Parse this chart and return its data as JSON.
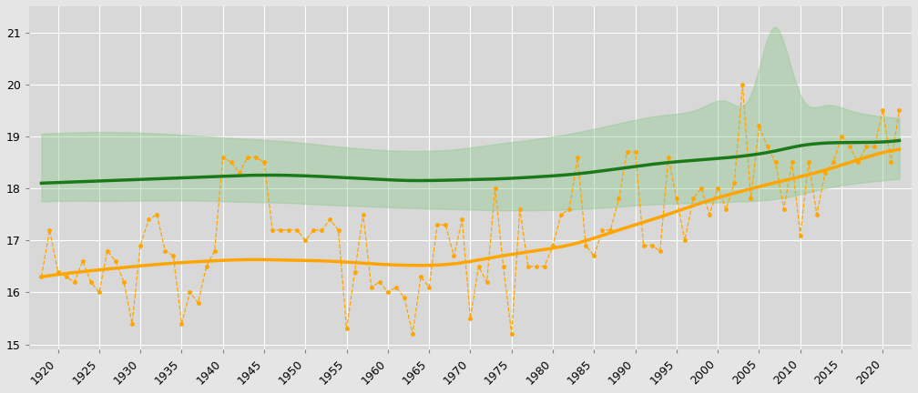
{
  "years": [
    1918,
    1919,
    1920,
    1921,
    1922,
    1923,
    1924,
    1925,
    1926,
    1927,
    1928,
    1929,
    1930,
    1931,
    1932,
    1933,
    1934,
    1935,
    1936,
    1937,
    1938,
    1939,
    1940,
    1941,
    1942,
    1943,
    1944,
    1945,
    1946,
    1947,
    1948,
    1949,
    1950,
    1951,
    1952,
    1953,
    1954,
    1955,
    1956,
    1957,
    1958,
    1959,
    1960,
    1961,
    1962,
    1963,
    1964,
    1965,
    1966,
    1967,
    1968,
    1969,
    1970,
    1971,
    1972,
    1973,
    1974,
    1975,
    1976,
    1977,
    1978,
    1979,
    1980,
    1981,
    1982,
    1983,
    1984,
    1985,
    1986,
    1987,
    1988,
    1989,
    1990,
    1991,
    1992,
    1993,
    1994,
    1995,
    1996,
    1997,
    1998,
    1999,
    2000,
    2001,
    2002,
    2003,
    2004,
    2005,
    2006,
    2007,
    2008,
    2009,
    2010,
    2011,
    2012,
    2013,
    2014,
    2015,
    2016,
    2017,
    2018,
    2019,
    2020,
    2021,
    2022
  ],
  "temp_raw": [
    16.3,
    17.2,
    16.4,
    16.3,
    16.2,
    16.6,
    16.2,
    16.0,
    16.8,
    16.6,
    16.2,
    15.4,
    16.9,
    17.4,
    17.5,
    16.8,
    16.7,
    15.4,
    16.0,
    15.8,
    16.5,
    16.8,
    18.6,
    18.5,
    18.3,
    18.6,
    18.6,
    18.5,
    17.2,
    17.2,
    17.2,
    17.2,
    17.0,
    17.2,
    17.2,
    17.4,
    17.2,
    15.3,
    16.4,
    17.5,
    16.1,
    16.2,
    16.0,
    16.1,
    15.9,
    15.2,
    16.3,
    16.1,
    17.3,
    17.3,
    16.7,
    17.4,
    15.5,
    16.5,
    16.2,
    18.0,
    16.5,
    15.2,
    17.6,
    16.5,
    16.5,
    16.5,
    16.9,
    17.5,
    17.6,
    18.6,
    16.9,
    16.7,
    17.2,
    17.2,
    17.8,
    18.7,
    18.7,
    16.9,
    16.9,
    16.8,
    18.6,
    17.8,
    17.0,
    17.8,
    18.0,
    17.5,
    18.0,
    17.6,
    18.1,
    20.0,
    17.8,
    19.2,
    18.8,
    18.5,
    17.6,
    18.5,
    17.1,
    18.5,
    17.5,
    18.3,
    18.5,
    19.0,
    18.8,
    18.5,
    18.8,
    18.8,
    19.5,
    18.5,
    19.5
  ],
  "temp_smooth_x": [
    1918,
    1923,
    1928,
    1933,
    1938,
    1943,
    1948,
    1953,
    1958,
    1963,
    1968,
    1973,
    1978,
    1983,
    1988,
    1993,
    1998,
    2003,
    2008,
    2013,
    2018,
    2022
  ],
  "temp_smooth_y": [
    16.3,
    16.4,
    16.48,
    16.55,
    16.6,
    16.63,
    16.62,
    16.6,
    16.55,
    16.52,
    16.55,
    16.68,
    16.8,
    16.95,
    17.2,
    17.45,
    17.72,
    17.95,
    18.15,
    18.35,
    18.6,
    18.75
  ],
  "opt_temp_x": [
    1918,
    1923,
    1928,
    1933,
    1938,
    1943,
    1948,
    1953,
    1958,
    1963,
    1968,
    1973,
    1978,
    1983,
    1988,
    1993,
    1998,
    2003,
    2007,
    2010,
    2015,
    2022
  ],
  "opt_temp_y": [
    18.1,
    18.13,
    18.16,
    18.19,
    18.22,
    18.25,
    18.25,
    18.22,
    18.18,
    18.15,
    18.16,
    18.18,
    18.22,
    18.28,
    18.38,
    18.48,
    18.55,
    18.62,
    18.72,
    18.82,
    18.88,
    18.92
  ],
  "opt_upper_x": [
    1918,
    1923,
    1928,
    1933,
    1938,
    1943,
    1948,
    1953,
    1958,
    1963,
    1968,
    1973,
    1978,
    1983,
    1988,
    1993,
    1998,
    2001,
    2004,
    2007,
    2008,
    2010,
    2013,
    2016,
    2019,
    2022
  ],
  "opt_upper_y": [
    19.05,
    19.08,
    19.08,
    19.05,
    19.0,
    18.95,
    18.9,
    18.82,
    18.75,
    18.72,
    18.75,
    18.85,
    18.95,
    19.08,
    19.25,
    19.4,
    19.55,
    19.68,
    19.8,
    21.1,
    20.8,
    19.8,
    19.6,
    19.5,
    19.4,
    19.35
  ],
  "opt_lower_x": [
    1918,
    1923,
    1928,
    1933,
    1938,
    1943,
    1948,
    1953,
    1958,
    1963,
    1968,
    1973,
    1978,
    1983,
    1988,
    1993,
    1998,
    2003,
    2008,
    2013,
    2018,
    2022
  ],
  "opt_lower_y": [
    17.75,
    17.76,
    17.76,
    17.77,
    17.76,
    17.74,
    17.72,
    17.68,
    17.65,
    17.62,
    17.6,
    17.58,
    17.58,
    17.6,
    17.65,
    17.7,
    17.72,
    17.75,
    17.82,
    18.0,
    18.12,
    18.18
  ],
  "bg_color": "#e5e5e5",
  "plot_bg_color": "#d8d8d8",
  "orange_color": "#FFA500",
  "green_color": "#1a7a1a",
  "green_fill_color": "#90c990",
  "green_fill_alpha": 0.42,
  "ylim": [
    14.9,
    21.5
  ],
  "yticks": [
    15,
    16,
    17,
    18,
    19,
    20,
    21
  ],
  "xlim_left": 1916.5,
  "xlim_right": 2023.5,
  "xtick_years": [
    1920,
    1925,
    1930,
    1935,
    1940,
    1945,
    1950,
    1955,
    1960,
    1965,
    1970,
    1975,
    1980,
    1985,
    1990,
    1995,
    2000,
    2005,
    2010,
    2015,
    2020
  ]
}
